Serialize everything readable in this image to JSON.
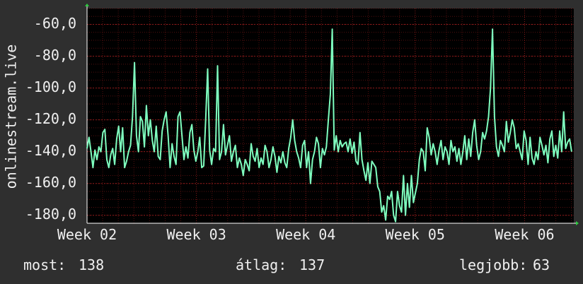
{
  "chart_data": {
    "type": "line",
    "ylabel": "onlinestream.live",
    "ylim": [
      -185,
      -50
    ],
    "yticks": [
      {
        "value": -60,
        "label": "-60,0"
      },
      {
        "value": -80,
        "label": "-80,0"
      },
      {
        "value": -100,
        "label": "-100,0"
      },
      {
        "value": -120,
        "label": "-120,0"
      },
      {
        "value": -140,
        "label": "-140,0"
      },
      {
        "value": -160,
        "label": "-160,0"
      },
      {
        "value": -180,
        "label": "-180,0"
      }
    ],
    "xlim": [
      0,
      4.45
    ],
    "xticks": [
      {
        "value": 0,
        "label": "Week 02"
      },
      {
        "value": 1,
        "label": "Week 03"
      },
      {
        "value": 2,
        "label": "Week 04"
      },
      {
        "value": 3,
        "label": "Week 05"
      },
      {
        "value": 4,
        "label": "Week 06"
      }
    ],
    "grid": true,
    "colors": {
      "background": "#2f2f2f",
      "plot_background": "#000000",
      "series": "#7fffbf",
      "grid": "#8b1a1a",
      "axis": "#ffffff",
      "arrow": "#2ecc40"
    },
    "series": [
      {
        "values": [
          -138,
          -131,
          -140,
          -150,
          -139,
          -145,
          -137,
          -140,
          -128,
          -126,
          -145,
          -150,
          -142,
          -138,
          -148,
          -132,
          -124,
          -140,
          -125,
          -150,
          -146,
          -140,
          -136,
          -118,
          -84,
          -130,
          -140,
          -118,
          -121,
          -137,
          -111,
          -130,
          -120,
          -133,
          -140,
          -124,
          -143,
          -145,
          -127,
          -120,
          -115,
          -130,
          -150,
          -135,
          -143,
          -148,
          -118,
          -115,
          -130,
          -145,
          -137,
          -144,
          -128,
          -123,
          -139,
          -146,
          -140,
          -131,
          -150,
          -149,
          -120,
          -88,
          -139,
          -148,
          -138,
          -140,
          -86,
          -145,
          -140,
          -123,
          -142,
          -136,
          -130,
          -146,
          -140,
          -136,
          -150,
          -144,
          -148,
          -155,
          -145,
          -148,
          -152,
          -135,
          -143,
          -146,
          -138,
          -150,
          -144,
          -148,
          -136,
          -140,
          -150,
          -145,
          -137,
          -143,
          -153,
          -143,
          -147,
          -140,
          -147,
          -150,
          -138,
          -131,
          -120,
          -133,
          -140,
          -144,
          -150,
          -136,
          -133,
          -150,
          -140,
          -160,
          -145,
          -140,
          -131,
          -135,
          -150,
          -138,
          -142,
          -137,
          -120,
          -104,
          -63,
          -139,
          -130,
          -140,
          -133,
          -137,
          -135,
          -134,
          -140,
          -132,
          -141,
          -134,
          -146,
          -148,
          -128,
          -145,
          -152,
          -158,
          -147,
          -160,
          -146,
          -148,
          -150,
          -162,
          -165,
          -178,
          -174,
          -183,
          -168,
          -170,
          -165,
          -180,
          -184,
          -165,
          -174,
          -178,
          -155,
          -180,
          -160,
          -175,
          -155,
          -172,
          -166,
          -160,
          -145,
          -138,
          -140,
          -152,
          -125,
          -131,
          -142,
          -135,
          -140,
          -148,
          -139,
          -133,
          -145,
          -137,
          -140,
          -148,
          -133,
          -140,
          -137,
          -146,
          -138,
          -148,
          -140,
          -130,
          -145,
          -132,
          -143,
          -128,
          -120,
          -136,
          -145,
          -140,
          -128,
          -132,
          -127,
          -118,
          -100,
          -63,
          -118,
          -137,
          -143,
          -133,
          -136,
          -140,
          -121,
          -134,
          -128,
          -120,
          -125,
          -138,
          -135,
          -140,
          -145,
          -127,
          -133,
          -148,
          -131,
          -144,
          -148,
          -140,
          -145,
          -131,
          -136,
          -142,
          -136,
          -147,
          -132,
          -127,
          -143,
          -136,
          -144,
          -127,
          -140,
          -115,
          -138,
          -134,
          -132,
          -140
        ]
      }
    ]
  },
  "footer": {
    "now_label": "most:",
    "now_value": "138",
    "avg_label": "átlag:",
    "avg_value": "137",
    "best_label": "legjobb:",
    "best_value": "63"
  }
}
